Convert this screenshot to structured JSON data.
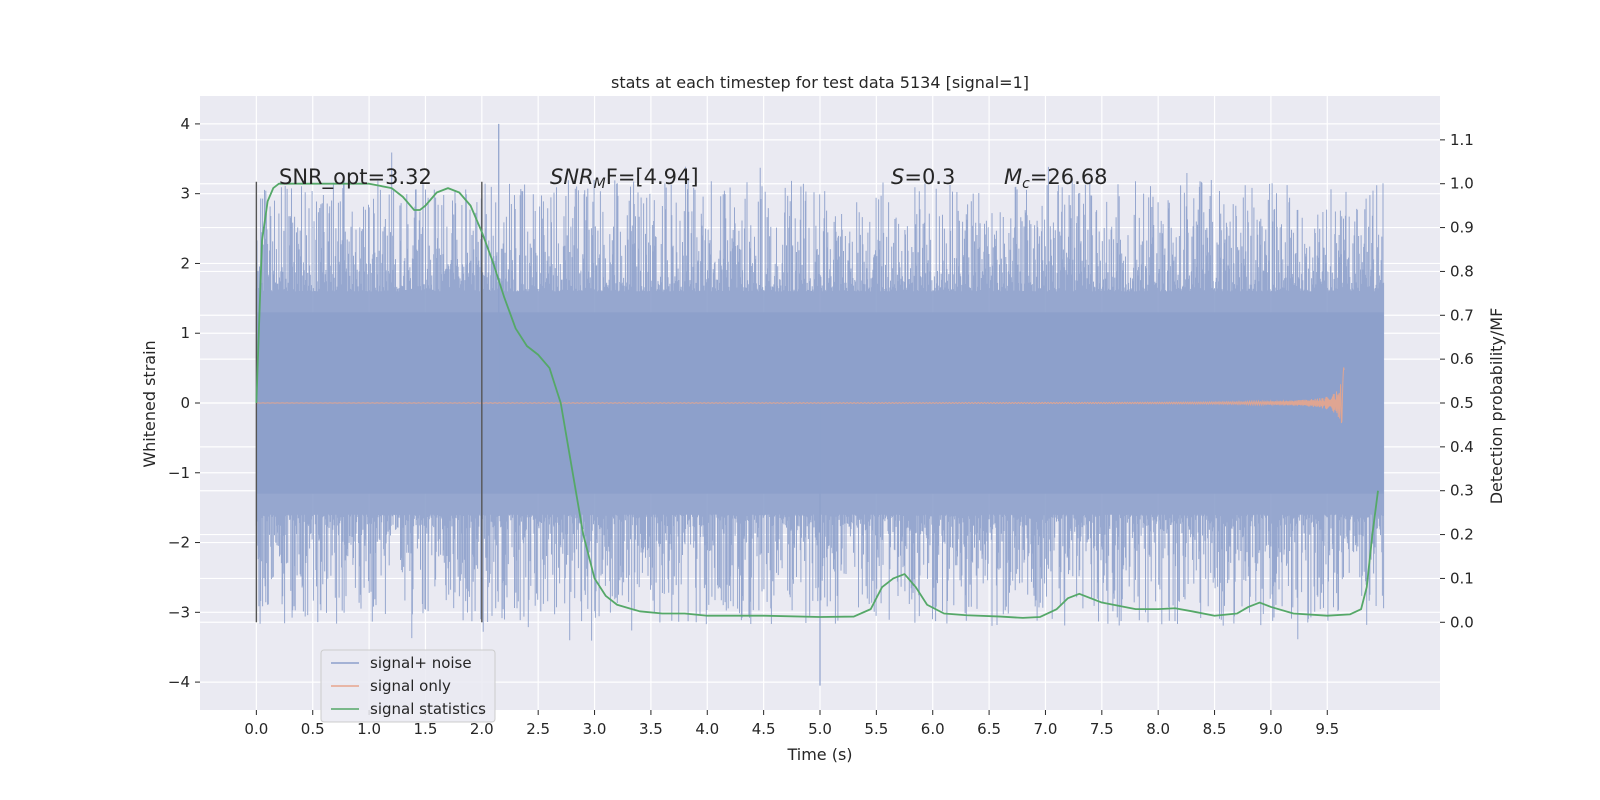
{
  "chart_data": {
    "type": "line",
    "title": "stats at each timestep for test data 5134 [signal=1]",
    "xlabel": "Time (s)",
    "ylabel": "Whitened strain",
    "ylabel_right": "Detection probability/MF",
    "xlim": [
      -0.5,
      10.5
    ],
    "ylim": [
      -4.4,
      4.4
    ],
    "ylim_right": [
      -0.2,
      1.2
    ],
    "grid": true,
    "legend_position": "lower-left",
    "x_ticks": [
      "0.0",
      "0.5",
      "1.0",
      "1.5",
      "2.0",
      "2.5",
      "3.0",
      "3.5",
      "4.0",
      "4.5",
      "5.0",
      "5.5",
      "6.0",
      "6.5",
      "7.0",
      "7.5",
      "8.0",
      "8.5",
      "9.0",
      "9.5"
    ],
    "y_ticks": [
      "4",
      "3",
      "2",
      "1",
      "0",
      "−1",
      "−2",
      "−3",
      "−4"
    ],
    "y_ticks_right": [
      "1.1",
      "1.0",
      "0.9",
      "0.8",
      "0.7",
      "0.6",
      "0.5",
      "0.4",
      "0.3",
      "0.2",
      "0.1",
      "0.0"
    ],
    "vertical_lines": [
      0.0,
      2.0
    ],
    "annotations": {
      "snr_opt": "SNR_opt=3.32",
      "snr_mf_main": "SNR",
      "snr_mf_sub": "M",
      "snr_mf_rest": "F=[4.94]",
      "s_main": "S",
      "s_rest": "=0.3",
      "mc_main": "M",
      "mc_sub": "c",
      "mc_rest": "=26.68"
    },
    "series": [
      {
        "name": "signal+ noise",
        "color": "#8da0cb",
        "time_range": [
          0.0,
          10.0
        ],
        "core_band": [
          -1.3,
          1.3
        ],
        "spike_max": [
          4.0,
          3.5
        ],
        "spike_min": [
          -4.05,
          -3.7
        ]
      },
      {
        "name": "signal only",
        "color": "#e8a58c",
        "time_range": [
          0.0,
          9.65
        ],
        "peak_amplitude": 0.75
      },
      {
        "name": "signal statistics",
        "color": "#55a868",
        "axis": "right",
        "x": [
          0.0,
          0.05,
          0.1,
          0.15,
          0.2,
          0.3,
          0.5,
          0.8,
          1.0,
          1.2,
          1.3,
          1.4,
          1.45,
          1.5,
          1.6,
          1.7,
          1.8,
          1.9,
          2.0,
          2.1,
          2.2,
          2.3,
          2.4,
          2.5,
          2.6,
          2.7,
          2.8,
          2.9,
          3.0,
          3.1,
          3.2,
          3.4,
          3.6,
          3.8,
          4.0,
          4.5,
          5.0,
          5.3,
          5.45,
          5.55,
          5.65,
          5.75,
          5.85,
          5.95,
          6.1,
          6.3,
          6.6,
          6.8,
          6.95,
          7.1,
          7.2,
          7.3,
          7.5,
          7.8,
          8.0,
          8.15,
          8.3,
          8.5,
          8.7,
          8.8,
          8.9,
          9.0,
          9.2,
          9.5,
          9.7,
          9.8,
          9.85,
          9.9,
          9.95
        ],
        "values": [
          0.5,
          0.87,
          0.96,
          0.99,
          1.0,
          1.0,
          1.0,
          1.0,
          1.0,
          0.99,
          0.97,
          0.94,
          0.94,
          0.95,
          0.98,
          0.99,
          0.98,
          0.95,
          0.89,
          0.82,
          0.74,
          0.67,
          0.63,
          0.61,
          0.58,
          0.5,
          0.35,
          0.2,
          0.1,
          0.06,
          0.04,
          0.025,
          0.02,
          0.02,
          0.015,
          0.015,
          0.012,
          0.013,
          0.03,
          0.08,
          0.1,
          0.11,
          0.08,
          0.04,
          0.02,
          0.016,
          0.013,
          0.01,
          0.012,
          0.03,
          0.055,
          0.065,
          0.045,
          0.03,
          0.03,
          0.032,
          0.025,
          0.015,
          0.02,
          0.035,
          0.045,
          0.035,
          0.02,
          0.015,
          0.018,
          0.03,
          0.08,
          0.2,
          0.3
        ]
      }
    ]
  }
}
